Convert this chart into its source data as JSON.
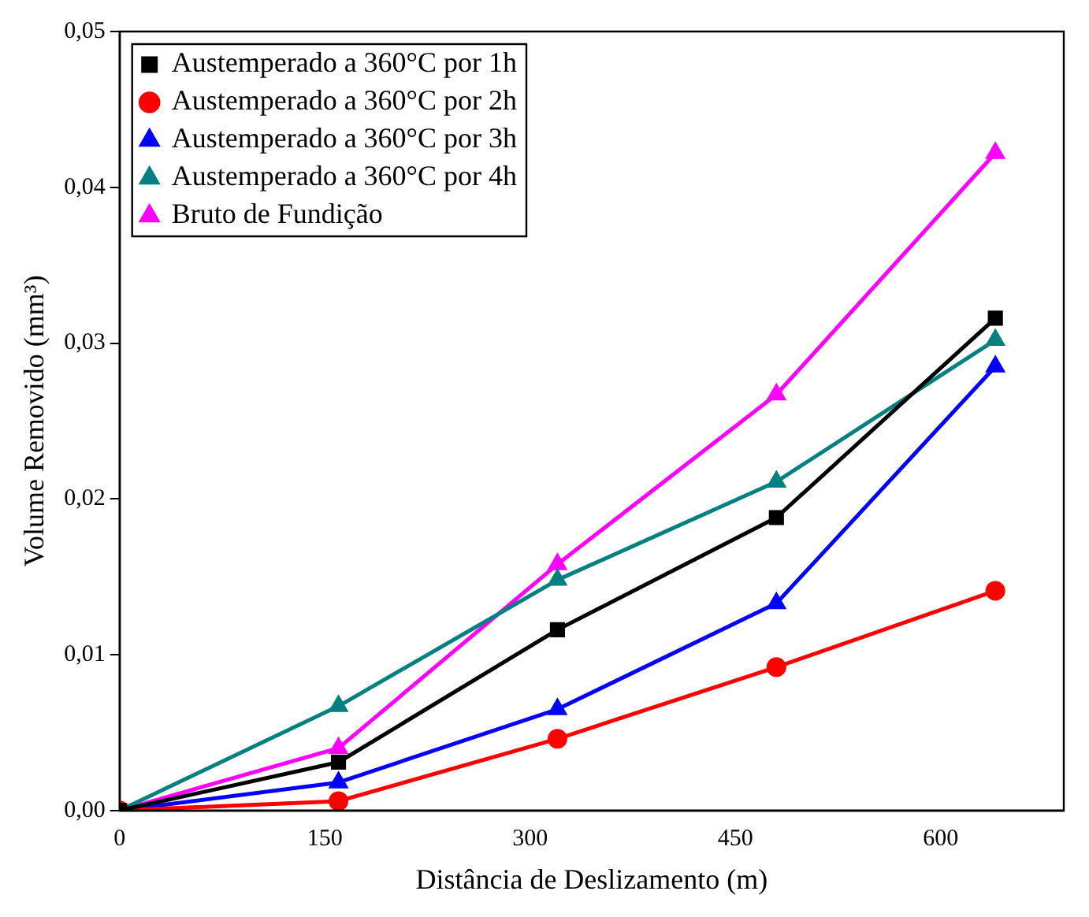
{
  "chart_data": {
    "type": "line",
    "xlabel": "Distância de Deslizamento (m)",
    "ylabel": "Volume Removido (mm³)",
    "x": [
      0,
      160,
      320,
      480,
      640
    ],
    "xlim": [
      0,
      690
    ],
    "xticks": [
      0,
      150,
      300,
      450,
      600
    ],
    "ylim": [
      0,
      0.05
    ],
    "yticks": [
      {
        "value": 0,
        "label": "0,00"
      },
      {
        "value": 0.01,
        "label": "0,01"
      },
      {
        "value": 0.02,
        "label": "0,02"
      },
      {
        "value": 0.03,
        "label": "0,03"
      },
      {
        "value": 0.04,
        "label": "0,04"
      },
      {
        "value": 0.05,
        "label": "0,05"
      }
    ],
    "legend": "top left",
    "grid": false,
    "line_style": "solid",
    "series": [
      {
        "name": "Austemperado a 360°C por 1h",
        "color": "#000000",
        "marker": "square",
        "values": [
          0,
          0.0031,
          0.0116,
          0.0188,
          0.0316
        ]
      },
      {
        "name": "Austemperado a 360°C por 2h",
        "color": "#ff0000",
        "marker": "circle",
        "values": [
          0,
          0.0006,
          0.0046,
          0.0092,
          0.0141
        ]
      },
      {
        "name": "Austemperado a 360°C por 3h",
        "color": "#0000ff",
        "marker": "triangle",
        "values": [
          0,
          0.0018,
          0.0065,
          0.0133,
          0.0285
        ]
      },
      {
        "name": "Austemperado a 360°C por 4h",
        "color": "#008080",
        "marker": "triangle",
        "values": [
          0,
          0.0067,
          0.0148,
          0.0211,
          0.0302
        ]
      },
      {
        "name": "Bruto de Fundição",
        "color": "#ff00ff",
        "marker": "triangle",
        "values": [
          0,
          0.004,
          0.0158,
          0.0267,
          0.0422
        ]
      }
    ]
  }
}
